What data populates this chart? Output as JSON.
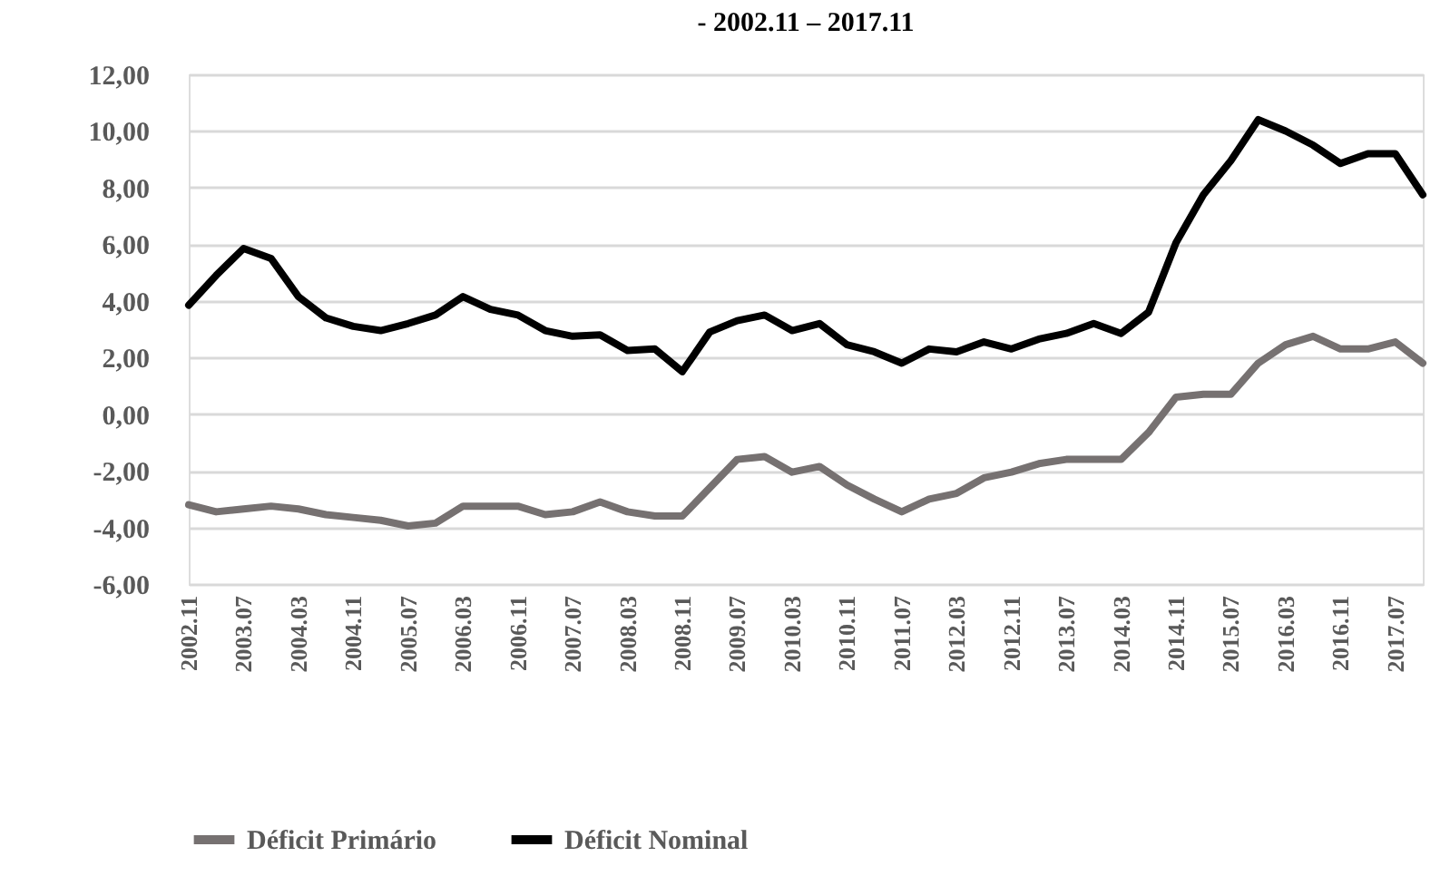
{
  "chart_data": {
    "type": "line",
    "title": "- 2002.11 – 2017.11",
    "categories": [
      "2002.11",
      null,
      "2003.07",
      null,
      "2004.03",
      null,
      "2004.11",
      null,
      "2005.07",
      null,
      "2006.03",
      null,
      "2006.11",
      null,
      "2007.07",
      null,
      "2008.03",
      null,
      "2008.11",
      null,
      "2009.07",
      null,
      "2010.03",
      null,
      "2010.11",
      null,
      "2011.07",
      null,
      "2012.03",
      null,
      "2012.11",
      null,
      "2013.07",
      null,
      "2014.03",
      null,
      "2014.11",
      null,
      "2015.07",
      null,
      "2016.03",
      null,
      "2016.11",
      null,
      "2017.07",
      null
    ],
    "series": [
      {
        "name": "Déficit Primário",
        "color": "#767171",
        "values": [
          -3.2,
          -3.45,
          -3.35,
          -3.25,
          -3.35,
          -3.55,
          -3.65,
          -3.75,
          -3.95,
          -3.85,
          -3.25,
          -3.25,
          -3.25,
          -3.55,
          -3.45,
          -3.1,
          -3.45,
          -3.6,
          -3.6,
          -2.6,
          -1.6,
          -1.5,
          -2.05,
          -1.85,
          -2.5,
          -3.0,
          -3.45,
          -3.0,
          -2.8,
          -2.25,
          -2.05,
          -1.75,
          -1.6,
          -1.6,
          -1.6,
          -0.65,
          0.6,
          0.7,
          0.7,
          1.8,
          2.45,
          2.75,
          2.3,
          2.3,
          2.55,
          1.8
        ]
      },
      {
        "name": "Déficit Nominal",
        "color": "#000000",
        "values": [
          3.85,
          4.9,
          5.85,
          5.5,
          4.15,
          3.4,
          3.1,
          2.95,
          3.2,
          3.5,
          4.15,
          3.7,
          3.5,
          2.95,
          2.75,
          2.8,
          2.25,
          2.3,
          1.5,
          2.9,
          3.3,
          3.5,
          2.95,
          3.2,
          2.45,
          2.2,
          1.8,
          2.3,
          2.2,
          2.55,
          2.3,
          2.65,
          2.85,
          3.2,
          2.85,
          3.6,
          6.05,
          7.75,
          8.95,
          10.4,
          10.0,
          9.5,
          8.85,
          9.2,
          9.2,
          7.75
        ]
      }
    ],
    "ylim": [
      -6,
      12
    ],
    "yticks": [
      {
        "value": -6,
        "label": "-6,00"
      },
      {
        "value": -4,
        "label": "-4,00"
      },
      {
        "value": -2,
        "label": "-2,00"
      },
      {
        "value": 0,
        "label": "0,00"
      },
      {
        "value": 2,
        "label": "2,00"
      },
      {
        "value": 4,
        "label": "4,00"
      },
      {
        "value": 6,
        "label": "6,00"
      },
      {
        "value": 8,
        "label": "8,00"
      },
      {
        "value": 10,
        "label": "10,00"
      },
      {
        "value": 12,
        "label": "12,00"
      }
    ],
    "grid": "y",
    "legend": "bottom",
    "marker": "none",
    "line_style": "solid"
  }
}
